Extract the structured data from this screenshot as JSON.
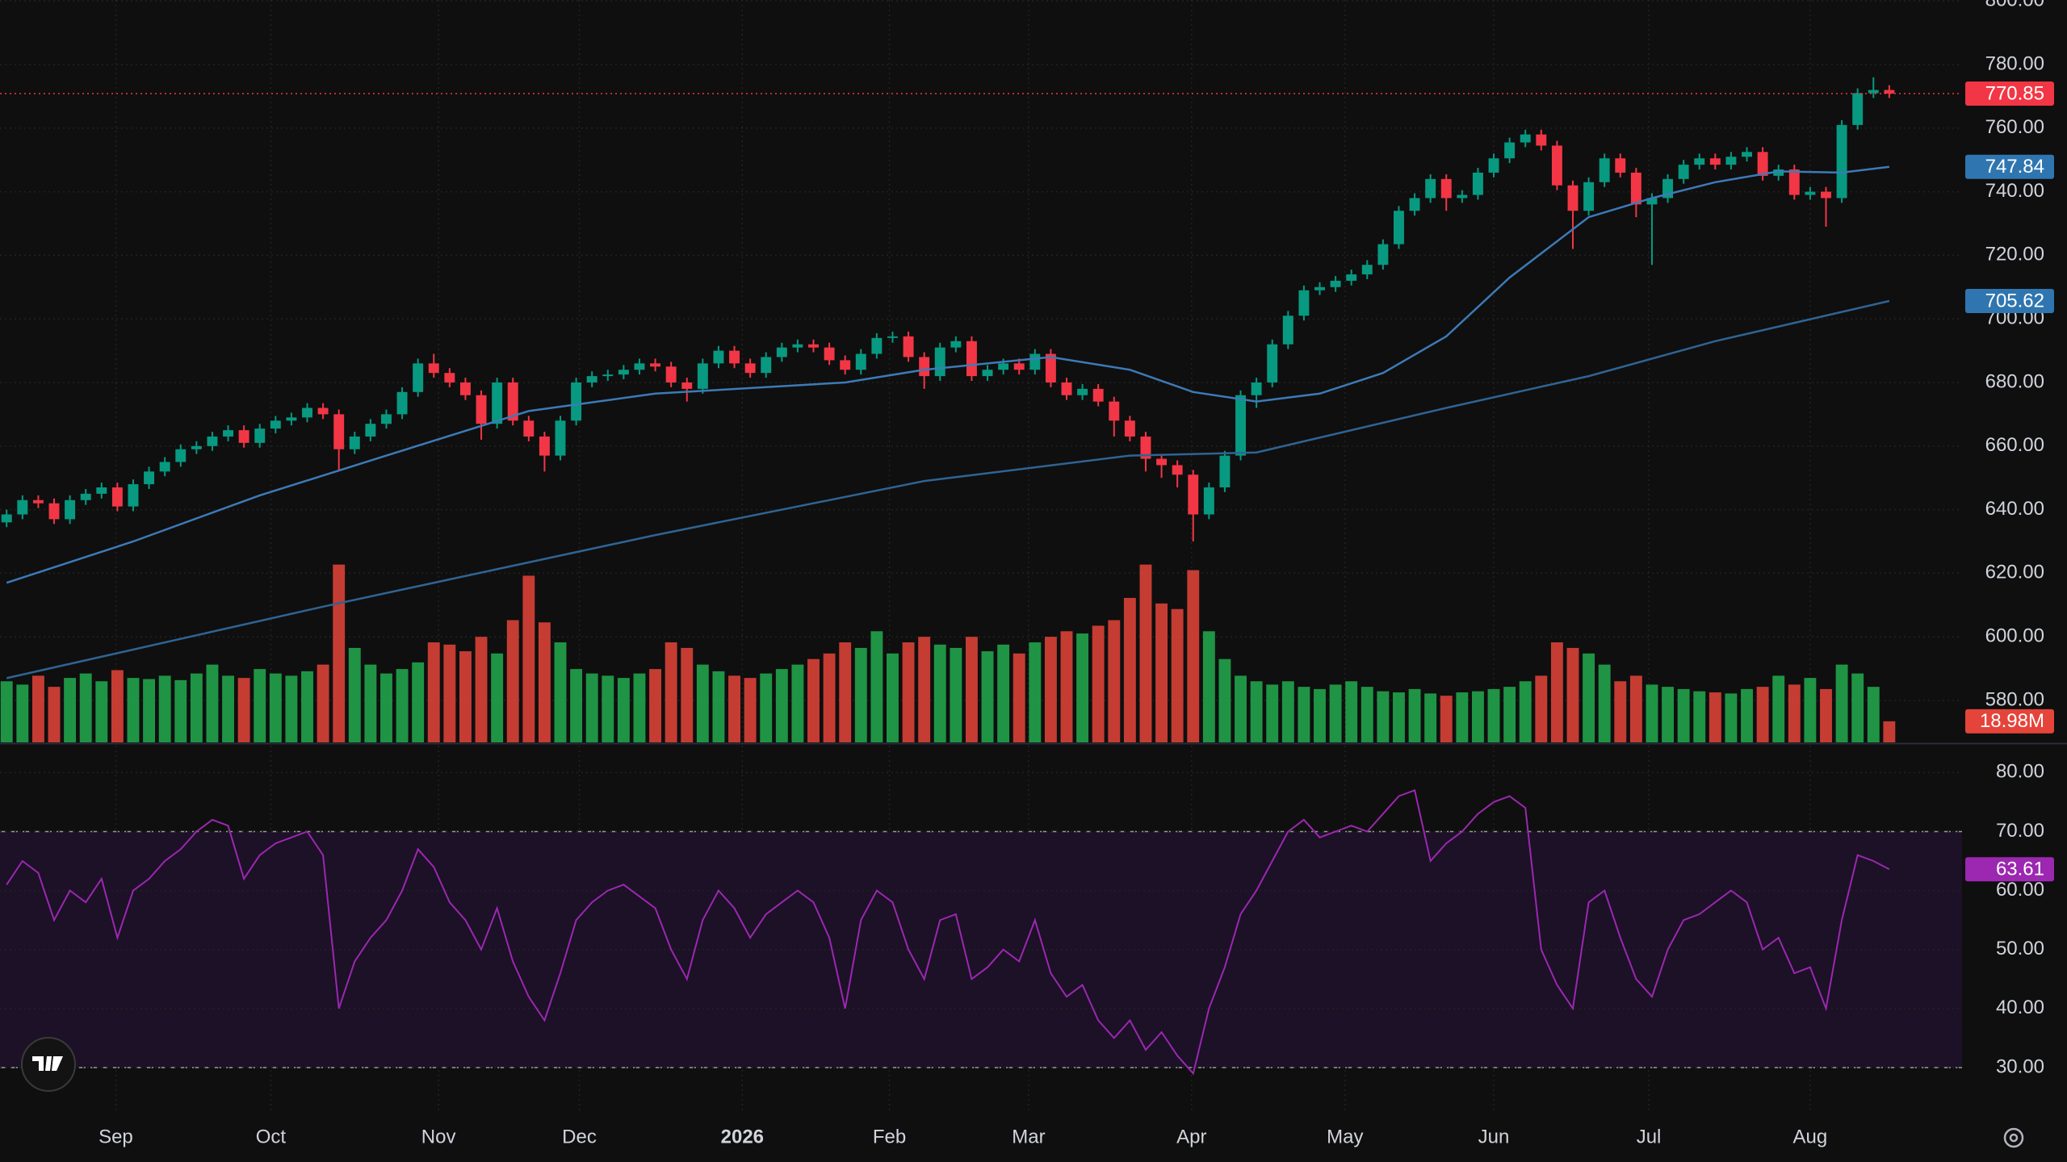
{
  "chart_data": [
    {
      "type": "candlestick",
      "up_color": "#089981",
      "down_color": "#f23645",
      "xlim": [
        -0.42,
        123.6
      ],
      "xticks": [
        {
          "value": 6.9,
          "label": "Sep"
        },
        {
          "value": 16.7,
          "label": "Oct"
        },
        {
          "value": 27.3,
          "label": "Nov"
        },
        {
          "value": 36.2,
          "label": "Dec"
        },
        {
          "value": 46.5,
          "label": "2026"
        },
        {
          "value": 55.8,
          "label": "Feb"
        },
        {
          "value": 64.6,
          "label": "Mar"
        },
        {
          "value": 74.9,
          "label": "Apr"
        },
        {
          "value": 84.6,
          "label": "May"
        },
        {
          "value": 94.0,
          "label": "Jun"
        },
        {
          "value": 103.8,
          "label": "Jul"
        },
        {
          "value": 114.0,
          "label": "Aug"
        }
      ],
      "ylim": [
        566.8,
        800.3
      ],
      "yticks": [
        {
          "value": 580,
          "label": "580.00"
        },
        {
          "value": 600,
          "label": "600.00"
        },
        {
          "value": 620,
          "label": "620.00"
        },
        {
          "value": 640,
          "label": "640.00"
        },
        {
          "value": 660,
          "label": "660.00"
        },
        {
          "value": 680,
          "label": "680.00"
        },
        {
          "value": 700,
          "label": "700.00"
        },
        {
          "value": 720,
          "label": "720.00"
        },
        {
          "value": 740,
          "label": "740.00"
        },
        {
          "value": 760,
          "label": "760.00"
        },
        {
          "value": 780,
          "label": "780.00"
        },
        {
          "value": 800,
          "label": "800.00"
        }
      ],
      "grid": true,
      "open": [
        636,
        638.5,
        643,
        642,
        637,
        643,
        645,
        647,
        641,
        648,
        652,
        655,
        659,
        660,
        663,
        665,
        661,
        665.5,
        668,
        669,
        672,
        670,
        659,
        663,
        667,
        670,
        677,
        686,
        683,
        680,
        676,
        667,
        680,
        668,
        663,
        657,
        668,
        680,
        682,
        682.5,
        684,
        686,
        685,
        680,
        678,
        686,
        690,
        686,
        683,
        688,
        691,
        692,
        691,
        687,
        684,
        689,
        694,
        694.5,
        688,
        682,
        691,
        693,
        682,
        684,
        686,
        684,
        689,
        680,
        676,
        678,
        674,
        668,
        663,
        656,
        654,
        651,
        638.5,
        647,
        657,
        676,
        680,
        692,
        701,
        709,
        710,
        712,
        714,
        717,
        723.5,
        734,
        738,
        744,
        738,
        739,
        746,
        750.5,
        755.5,
        758,
        754.5,
        742,
        734,
        743,
        750.5,
        746,
        736,
        738,
        744,
        748.5,
        750.5,
        748.5,
        751,
        752.5,
        745,
        747,
        739,
        740,
        738,
        761,
        771,
        772
      ],
      "high": [
        640,
        644.5,
        644.5,
        643.5,
        644.5,
        646.5,
        648.5,
        648.5,
        649.5,
        653.5,
        656.5,
        660.5,
        661.5,
        664.5,
        666.5,
        666.5,
        667,
        669.5,
        670.5,
        673.5,
        673.5,
        671.5,
        664.5,
        668.5,
        671.5,
        678.5,
        687.5,
        689,
        684.5,
        681.5,
        677.5,
        681.5,
        681.5,
        669.5,
        664.5,
        669.5,
        681.5,
        683.5,
        684,
        685.5,
        687.5,
        687.5,
        686.5,
        681.5,
        687.5,
        691.5,
        691.5,
        687.5,
        689.5,
        692.5,
        693.5,
        693.5,
        692.5,
        688.5,
        690.5,
        695.5,
        696,
        696,
        689.5,
        692.5,
        694.5,
        694.5,
        685.5,
        687.5,
        687.5,
        690.5,
        690.5,
        681.5,
        679.5,
        679.5,
        675.5,
        669.5,
        664.5,
        657.5,
        655.5,
        652.5,
        648.5,
        658.5,
        677.5,
        681.5,
        693.5,
        702.5,
        710.5,
        711.5,
        713.5,
        715.5,
        718.5,
        725,
        735.5,
        739.5,
        745.5,
        745.5,
        740.5,
        747.5,
        752,
        757,
        759.5,
        759.5,
        756,
        743.5,
        744.5,
        752,
        752,
        747.5,
        739.5,
        745.5,
        750,
        752,
        752,
        752.5,
        754,
        754,
        748.5,
        748.5,
        741.5,
        741.5,
        762.5,
        772.5,
        776,
        773.5
      ],
      "low": [
        634.5,
        637,
        640.5,
        635.5,
        635.5,
        641.5,
        643.5,
        639.5,
        639.5,
        646.5,
        650.5,
        653.5,
        657.5,
        658.5,
        661.5,
        659.5,
        659.5,
        664,
        666.5,
        667.5,
        668.5,
        652,
        657.5,
        661.5,
        665.5,
        668.5,
        675.5,
        681.5,
        678.5,
        674.5,
        662,
        665.5,
        666.5,
        661.5,
        652,
        655.5,
        666.5,
        678.5,
        680.5,
        681,
        682.5,
        683.5,
        678.5,
        674,
        676.5,
        684.5,
        684.5,
        681.5,
        681.5,
        686.5,
        689.5,
        689.5,
        685.5,
        682.5,
        682.5,
        687.5,
        692.5,
        686.5,
        678,
        680.5,
        689.5,
        680.5,
        680.5,
        682.5,
        682.5,
        682.5,
        678.5,
        674.5,
        674.5,
        672.5,
        663,
        661.5,
        652,
        650,
        647,
        630,
        637,
        645.5,
        655.5,
        672,
        678.5,
        690.5,
        699.5,
        707.5,
        708.5,
        710.5,
        712.5,
        715.5,
        722,
        732.5,
        736.5,
        734,
        736.5,
        737.5,
        744.5,
        749,
        754,
        753,
        740.5,
        722,
        732.5,
        741.5,
        744.5,
        732,
        717,
        736.5,
        742.5,
        747,
        747,
        747,
        749.5,
        743.5,
        743.5,
        737.5,
        737.5,
        729,
        736.5,
        759.5,
        769.5,
        769.5
      ],
      "close": [
        638.5,
        643,
        642,
        637,
        643,
        645,
        647,
        641,
        648,
        652,
        655,
        659,
        660,
        663,
        665,
        661,
        665.5,
        668,
        669,
        672,
        670,
        659,
        663,
        667,
        670,
        677,
        686,
        683,
        680,
        676,
        667,
        680,
        668,
        663,
        657,
        668,
        680,
        682,
        682.5,
        684,
        686,
        685,
        680,
        678,
        686,
        690,
        686,
        683,
        688,
        691,
        692,
        691,
        687,
        684,
        689,
        694,
        694.5,
        688,
        682,
        691,
        693,
        682,
        684,
        686,
        684,
        689,
        680,
        676,
        678,
        674,
        668,
        663,
        656,
        654,
        651,
        638.5,
        647,
        657,
        676,
        680,
        692,
        701,
        709,
        710,
        712,
        714,
        717,
        723.5,
        734,
        738,
        744,
        738,
        739,
        746,
        750.5,
        755.5,
        758,
        754.5,
        742,
        734,
        743,
        750.5,
        746,
        736,
        738,
        744,
        748.5,
        750.5,
        748.5,
        751,
        752.5,
        745,
        747,
        739,
        740,
        738,
        761,
        771,
        772,
        770.85
      ],
      "overlays": [
        {
          "type": "line",
          "color": "#3d7ab8",
          "badge_color": "#2f76b0",
          "x": [
            0,
            8,
            16,
            24,
            33,
            41,
            53,
            58,
            66,
            71,
            75,
            79,
            83,
            87,
            91,
            95,
            100,
            104,
            108,
            112,
            116,
            119
          ],
          "values": [
            617,
            630,
            644.5,
            657,
            671,
            676.5,
            680,
            684,
            688,
            684,
            677,
            674,
            676.5,
            683,
            694.5,
            713,
            732,
            738,
            743,
            746.4,
            746,
            747.84
          ]
        },
        {
          "type": "line",
          "color": "#2f6493",
          "badge_color": "#2f76b0",
          "x": [
            0,
            20,
            41,
            58,
            71,
            79,
            91,
            100,
            108,
            119
          ],
          "values": [
            587,
            609.5,
            632,
            649,
            657,
            658,
            672,
            682,
            693,
            705.62
          ]
        }
      ]
    },
    {
      "type": "bar",
      "up_color": "#22ab4f",
      "down_color": "#e5443a",
      "ylim": [
        0,
        668
      ],
      "values": [
        55,
        52,
        60,
        50,
        58,
        62,
        55,
        65,
        58,
        57,
        60,
        56,
        62,
        70,
        60,
        58,
        66,
        62,
        60,
        64,
        70,
        160,
        85,
        70,
        62,
        66,
        72,
        90,
        88,
        82,
        95,
        80,
        110,
        150,
        108,
        90,
        66,
        62,
        60,
        58,
        62,
        66,
        90,
        85,
        70,
        64,
        60,
        58,
        62,
        66,
        70,
        75,
        80,
        90,
        85,
        100,
        80,
        90,
        95,
        88,
        85,
        95,
        82,
        88,
        80,
        90,
        95,
        100,
        98,
        105,
        110,
        130,
        160,
        125,
        120,
        155,
        100,
        75,
        60,
        55,
        52,
        55,
        50,
        48,
        52,
        55,
        50,
        46,
        45,
        48,
        44,
        42,
        45,
        46,
        48,
        50,
        55,
        60,
        90,
        85,
        80,
        70,
        55,
        60,
        52,
        50,
        48,
        46,
        45,
        44,
        48,
        50,
        60,
        52,
        58,
        48,
        70,
        62,
        50,
        18.98
      ],
      "value_labels": [
        null,
        null,
        null,
        null,
        null,
        null,
        null,
        null,
        null,
        null,
        null,
        null,
        null,
        null,
        null,
        null,
        null,
        null,
        null,
        null,
        null,
        null,
        null,
        null,
        null,
        null,
        null,
        null,
        null,
        null,
        null,
        null,
        null,
        null,
        null,
        null,
        null,
        null,
        null,
        null,
        null,
        null,
        null,
        null,
        null,
        null,
        null,
        null,
        null,
        null,
        null,
        null,
        null,
        null,
        null,
        null,
        null,
        null,
        null,
        null,
        null,
        null,
        null,
        null,
        null,
        null,
        null,
        null,
        null,
        null,
        null,
        null,
        null,
        null,
        null,
        null,
        null,
        null,
        null,
        null,
        null,
        null,
        null,
        null,
        null,
        null,
        null,
        null,
        null,
        null,
        null,
        null,
        null,
        null,
        null,
        null,
        null,
        null,
        null,
        null,
        null,
        null,
        null,
        null,
        null,
        null,
        null,
        null,
        null,
        null,
        null,
        null,
        null,
        null,
        null,
        null,
        null,
        null,
        null,
        "18.98M"
      ]
    },
    {
      "type": "line",
      "color": "#9c27b0",
      "band": [
        30,
        70
      ],
      "band_color": "#1c1127",
      "ylim": [
        22.2,
        84.7
      ],
      "yticks": [
        {
          "value": 30,
          "label": "30.00"
        },
        {
          "value": 40,
          "label": "40.00"
        },
        {
          "value": 50,
          "label": "50.00"
        },
        {
          "value": 60,
          "label": "60.00"
        },
        {
          "value": 70,
          "label": "70.00"
        },
        {
          "value": 80,
          "label": "80.00"
        }
      ],
      "grid": true,
      "values": [
        61,
        65,
        63,
        55,
        60,
        58,
        62,
        52,
        60,
        62,
        65,
        67,
        70,
        72,
        71,
        62,
        66,
        68,
        69,
        70,
        66,
        40,
        48,
        52,
        55,
        60,
        67,
        64,
        58,
        55,
        50,
        57,
        48,
        42,
        38,
        46,
        55,
        58,
        60,
        61,
        59,
        57,
        50,
        45,
        55,
        60,
        57,
        52,
        56,
        58,
        60,
        58,
        52,
        40,
        55,
        60,
        58,
        50,
        45,
        55,
        56,
        45,
        47,
        50,
        48,
        55,
        46,
        42,
        44,
        38,
        35,
        38,
        33,
        36,
        32,
        29,
        40,
        47,
        56,
        60,
        65,
        70,
        72,
        69,
        70,
        71,
        70,
        73,
        76,
        77,
        65,
        68,
        70,
        73,
        75,
        76,
        74,
        50,
        44,
        40,
        58,
        60,
        52,
        45,
        42,
        50,
        55,
        56,
        58,
        60,
        58,
        50,
        52,
        46,
        47,
        40,
        55,
        66,
        65,
        63.61
      ]
    }
  ]
}
